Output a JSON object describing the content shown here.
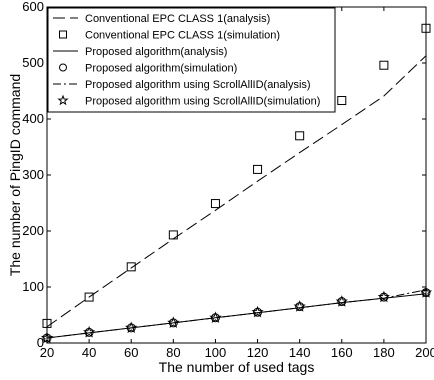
{
  "chart_data": {
    "type": "line",
    "title": "",
    "xlabel": "The number of used tags",
    "ylabel": "The number of PingID command",
    "xlim": [
      20,
      200
    ],
    "ylim": [
      0,
      600
    ],
    "x_ticks": [
      "20",
      "40",
      "60",
      "80",
      "100",
      "120",
      "140",
      "160",
      "180",
      "200"
    ],
    "y_ticks": [
      "0",
      "100",
      "200",
      "300",
      "400",
      "500",
      "600"
    ],
    "grid": false,
    "legend_position": "top-left",
    "x": [
      20,
      40,
      60,
      80,
      100,
      120,
      140,
      160,
      180,
      200
    ],
    "series": [
      {
        "name": "Conventional EPC CLASS 1(analysis)",
        "style": "dash",
        "color": "#000000",
        "values": [
          29,
          82,
          134,
          186,
          237,
          289,
          340,
          390,
          441,
          513
        ]
      },
      {
        "name": "Conventional EPC CLASS 1(simulation)",
        "style": "square",
        "color": "#000000",
        "values": [
          35,
          82,
          136,
          193,
          249,
          310,
          370,
          433,
          496,
          562
        ]
      },
      {
        "name": "Proposed algorithm(analysis)",
        "style": "solid",
        "color": "#000000",
        "values": [
          9,
          18,
          27,
          36,
          45,
          54,
          63,
          72,
          80,
          88
        ]
      },
      {
        "name": "Proposed algorithm(simulation)",
        "style": "circle",
        "color": "#000000",
        "values": [
          9,
          19,
          27,
          36,
          45,
          55,
          65,
          74,
          82,
          90
        ]
      },
      {
        "name": "Proposed algorithm using ScrollAllID(analysis)",
        "style": "dashdot",
        "color": "#000000",
        "values": [
          9,
          18,
          27,
          36,
          45,
          54,
          63,
          72,
          80,
          95
        ]
      },
      {
        "name": "Proposed algorithm using ScrollAllID(simulation)",
        "style": "star",
        "color": "#000000",
        "values": [
          9,
          19,
          27,
          36,
          45,
          55,
          65,
          74,
          82,
          90
        ]
      }
    ]
  }
}
